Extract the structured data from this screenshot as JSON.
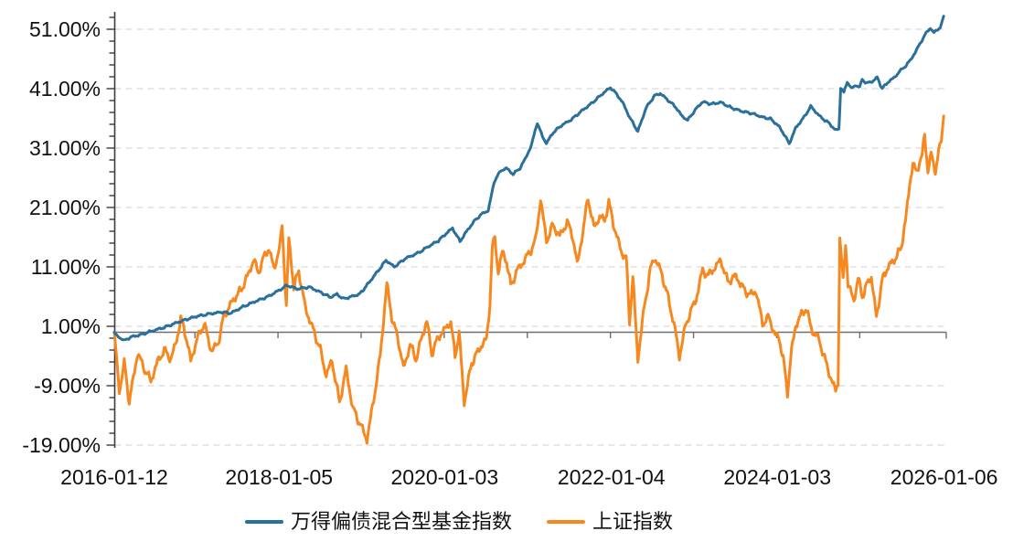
{
  "chart_data": {
    "type": "line",
    "title": "",
    "xlabel": "",
    "ylabel": "",
    "grid": {
      "color": "#d9d9d9",
      "dash": [
        7,
        5
      ],
      "vertical": false
    },
    "axis_color": "#3c3c3c",
    "baseline_color": "#6e6e6e",
    "label_color": "#111111",
    "y_axis": {
      "unit": "%",
      "min": -19,
      "max": 53,
      "minor_tick_step": 2,
      "zero_baseline": true,
      "ticks": [
        {
          "label": "51.00%",
          "value": 51
        },
        {
          "label": "41.00%",
          "value": 41
        },
        {
          "label": "31.00%",
          "value": 31
        },
        {
          "label": "21.00%",
          "value": 21
        },
        {
          "label": "11.00%",
          "value": 11
        },
        {
          "label": "1.00%",
          "value": 1
        },
        {
          "label": "-9.00%",
          "value": -9
        },
        {
          "label": "-19.00%",
          "value": -19
        }
      ]
    },
    "x_axis": {
      "units": "years since first date",
      "range": [
        0,
        9.985
      ],
      "ticks": [
        {
          "label": "2016-01-12",
          "t": 0
        },
        {
          "label": "2018-01-05",
          "t": 1.983
        },
        {
          "label": "2020-01-03",
          "t": 3.975
        },
        {
          "label": "2022-01-04",
          "t": 5.982
        },
        {
          "label": "2024-01-03",
          "t": 7.978
        },
        {
          "label": "2026-01-06",
          "t": 9.985
        }
      ],
      "year_tick_t": [
        0.97,
        1.97,
        2.97,
        3.97,
        4.97,
        5.97,
        6.97,
        7.97,
        8.97
      ]
    },
    "series": [
      {
        "id": "sse-index",
        "name": "上证指数",
        "color": "#f6881f",
        "stroke_width": 3,
        "noise_amp": 0.9,
        "points": [
          [
            0,
            0
          ],
          [
            0.03,
            -4.5
          ],
          [
            0.06,
            -10.3
          ],
          [
            0.12,
            -5.0
          ],
          [
            0.18,
            -11.8
          ],
          [
            0.28,
            -3.5
          ],
          [
            0.35,
            -5.8
          ],
          [
            0.44,
            -8.2
          ],
          [
            0.52,
            -5.0
          ],
          [
            0.6,
            -3.0
          ],
          [
            0.68,
            -4.5
          ],
          [
            0.75,
            -1.5
          ],
          [
            0.8,
            2.4
          ],
          [
            0.86,
            -0.5
          ],
          [
            0.92,
            -4.8
          ],
          [
            1.0,
            -1.0
          ],
          [
            1.08,
            1.5
          ],
          [
            1.17,
            -3.2
          ],
          [
            1.25,
            -1.8
          ],
          [
            1.32,
            2.8
          ],
          [
            1.42,
            5.2
          ],
          [
            1.52,
            7.0
          ],
          [
            1.6,
            9.3
          ],
          [
            1.68,
            12.3
          ],
          [
            1.73,
            10.0
          ],
          [
            1.8,
            12.6
          ],
          [
            1.86,
            14.1
          ],
          [
            1.92,
            10.8
          ],
          [
            1.99,
            14.0
          ],
          [
            2.02,
            18.2
          ],
          [
            2.07,
            4.2
          ],
          [
            2.1,
            15.8
          ],
          [
            2.16,
            7.5
          ],
          [
            2.22,
            10.4
          ],
          [
            2.3,
            4.0
          ],
          [
            2.38,
            1.0
          ],
          [
            2.48,
            -3.0
          ],
          [
            2.55,
            -7.2
          ],
          [
            2.62,
            -4.8
          ],
          [
            2.71,
            -11.8
          ],
          [
            2.79,
            -6.2
          ],
          [
            2.87,
            -12.8
          ],
          [
            2.96,
            -15.5
          ],
          [
            3.04,
            -18.1
          ],
          [
            3.12,
            -11.5
          ],
          [
            3.2,
            -4.0
          ],
          [
            3.28,
            8.2
          ],
          [
            3.34,
            2.5
          ],
          [
            3.42,
            -1.5
          ],
          [
            3.48,
            -6.1
          ],
          [
            3.56,
            -2.1
          ],
          [
            3.63,
            -4.5
          ],
          [
            3.7,
            -1.0
          ],
          [
            3.76,
            2.0
          ],
          [
            3.82,
            -3.6
          ],
          [
            3.9,
            -0.8
          ],
          [
            3.98,
            0.5
          ],
          [
            4.05,
            1.8
          ],
          [
            4.1,
            -4.1
          ],
          [
            4.15,
            0.0
          ],
          [
            4.21,
            -11.8
          ],
          [
            4.3,
            -5.2
          ],
          [
            4.4,
            -2.6
          ],
          [
            4.48,
            -1.2
          ],
          [
            4.52,
            5.0
          ],
          [
            4.55,
            14.5
          ],
          [
            4.58,
            15.6
          ],
          [
            4.62,
            10.2
          ],
          [
            4.67,
            13.5
          ],
          [
            4.72,
            12.0
          ],
          [
            4.77,
            7.8
          ],
          [
            4.85,
            10.5
          ],
          [
            4.93,
            12.0
          ],
          [
            5.0,
            13.5
          ],
          [
            5.07,
            15.5
          ],
          [
            5.13,
            22.4
          ],
          [
            5.2,
            15.4
          ],
          [
            5.28,
            18.0
          ],
          [
            5.36,
            16.2
          ],
          [
            5.45,
            18.5
          ],
          [
            5.52,
            16.0
          ],
          [
            5.57,
            11.3
          ],
          [
            5.64,
            17.0
          ],
          [
            5.7,
            22.8
          ],
          [
            5.77,
            17.5
          ],
          [
            5.84,
            19.5
          ],
          [
            5.9,
            18.8
          ],
          [
            5.95,
            21.8
          ],
          [
            6.02,
            17.5
          ],
          [
            6.1,
            13.5
          ],
          [
            6.16,
            12.5
          ],
          [
            6.2,
            1.8
          ],
          [
            6.24,
            9.3
          ],
          [
            6.3,
            -4.5
          ],
          [
            6.38,
            4.5
          ],
          [
            6.45,
            10.5
          ],
          [
            6.5,
            12.6
          ],
          [
            6.58,
            10.2
          ],
          [
            6.68,
            5.0
          ],
          [
            6.76,
            -0.5
          ],
          [
            6.8,
            -4.1
          ],
          [
            6.88,
            1.5
          ],
          [
            6.95,
            4.0
          ],
          [
            7.0,
            5.5
          ],
          [
            7.08,
            10.5
          ],
          [
            7.15,
            9.5
          ],
          [
            7.22,
            10.8
          ],
          [
            7.3,
            12.1
          ],
          [
            7.38,
            8.5
          ],
          [
            7.48,
            9.5
          ],
          [
            7.56,
            7.5
          ],
          [
            7.65,
            6.2
          ],
          [
            7.72,
            7.0
          ],
          [
            7.8,
            1.5
          ],
          [
            7.88,
            2.5
          ],
          [
            7.95,
            -0.5
          ],
          [
            8.0,
            -1.0
          ],
          [
            8.05,
            -4.5
          ],
          [
            8.1,
            -10.2
          ],
          [
            8.15,
            -3.0
          ],
          [
            8.2,
            1.2
          ],
          [
            8.27,
            3.0
          ],
          [
            8.32,
            4.1
          ],
          [
            8.4,
            0.2
          ],
          [
            8.48,
            -1.2
          ],
          [
            8.56,
            -5.0
          ],
          [
            8.63,
            -8.0
          ],
          [
            8.68,
            -9.9
          ],
          [
            8.71,
            -8.5
          ],
          [
            8.73,
            15.8
          ],
          [
            8.77,
            8.5
          ],
          [
            8.8,
            15.2
          ],
          [
            8.83,
            8.0
          ],
          [
            8.87,
            6.5
          ],
          [
            8.9,
            5.2
          ],
          [
            8.95,
            9.2
          ],
          [
            9.0,
            6.0
          ],
          [
            9.06,
            8.2
          ],
          [
            9.11,
            9.3
          ],
          [
            9.17,
            2.5
          ],
          [
            9.24,
            8.7
          ],
          [
            9.3,
            10.8
          ],
          [
            9.36,
            11.8
          ],
          [
            9.42,
            12.8
          ],
          [
            9.47,
            14.5
          ],
          [
            9.52,
            18.5
          ],
          [
            9.57,
            25.0
          ],
          [
            9.61,
            28.2
          ],
          [
            9.65,
            27.0
          ],
          [
            9.69,
            28.7
          ],
          [
            9.72,
            29.5
          ],
          [
            9.75,
            33.2
          ],
          [
            9.79,
            27.2
          ],
          [
            9.83,
            30.1
          ],
          [
            9.86,
            27.8
          ],
          [
            9.88,
            27.2
          ],
          [
            9.92,
            30.5
          ],
          [
            9.95,
            32.0
          ],
          [
            9.98,
            36.4
          ]
        ]
      },
      {
        "id": "fund-index",
        "name": "万得偏债混合型基金指数",
        "color": "#2b6f9b",
        "stroke_width": 3,
        "noise_amp": 0.22,
        "points": [
          [
            0,
            0
          ],
          [
            0.05,
            -0.8
          ],
          [
            0.12,
            -1.4
          ],
          [
            0.2,
            -0.8
          ],
          [
            0.3,
            -0.5
          ],
          [
            0.45,
            0.2
          ],
          [
            0.6,
            0.8
          ],
          [
            0.75,
            1.6
          ],
          [
            0.9,
            2.3
          ],
          [
            1.0,
            2.7
          ],
          [
            1.15,
            3.1
          ],
          [
            1.3,
            3.4
          ],
          [
            1.4,
            3.2
          ],
          [
            1.55,
            4.3
          ],
          [
            1.7,
            5.2
          ],
          [
            1.85,
            6.0
          ],
          [
            2.0,
            7.2
          ],
          [
            2.08,
            7.9
          ],
          [
            2.2,
            7.3
          ],
          [
            2.35,
            7.6
          ],
          [
            2.5,
            6.6
          ],
          [
            2.6,
            5.9
          ],
          [
            2.68,
            6.4
          ],
          [
            2.76,
            5.6
          ],
          [
            2.85,
            6.0
          ],
          [
            2.95,
            6.4
          ],
          [
            3.0,
            7.2
          ],
          [
            3.1,
            9.0
          ],
          [
            3.2,
            10.8
          ],
          [
            3.27,
            12.1
          ],
          [
            3.37,
            11.0
          ],
          [
            3.5,
            12.4
          ],
          [
            3.65,
            13.3
          ],
          [
            3.8,
            14.6
          ],
          [
            3.9,
            15.4
          ],
          [
            4.0,
            16.7
          ],
          [
            4.07,
            17.5
          ],
          [
            4.16,
            15.3
          ],
          [
            4.25,
            17.2
          ],
          [
            4.35,
            19.0
          ],
          [
            4.45,
            20.2
          ],
          [
            4.5,
            20.4
          ],
          [
            4.57,
            25.3
          ],
          [
            4.65,
            27.2
          ],
          [
            4.72,
            27.6
          ],
          [
            4.8,
            26.6
          ],
          [
            4.88,
            27.6
          ],
          [
            4.95,
            29.3
          ],
          [
            5.02,
            31.5
          ],
          [
            5.09,
            35.3
          ],
          [
            5.15,
            33.0
          ],
          [
            5.2,
            31.8
          ],
          [
            5.28,
            33.6
          ],
          [
            5.38,
            34.8
          ],
          [
            5.5,
            35.8
          ],
          [
            5.62,
            37.2
          ],
          [
            5.75,
            38.6
          ],
          [
            5.88,
            40.2
          ],
          [
            5.97,
            41.2
          ],
          [
            6.05,
            40.0
          ],
          [
            6.12,
            38.6
          ],
          [
            6.2,
            36.2
          ],
          [
            6.3,
            33.8
          ],
          [
            6.4,
            37.8
          ],
          [
            6.5,
            39.8
          ],
          [
            6.57,
            40.2
          ],
          [
            6.65,
            39.2
          ],
          [
            6.75,
            38.0
          ],
          [
            6.83,
            36.4
          ],
          [
            6.9,
            35.7
          ],
          [
            7.0,
            37.6
          ],
          [
            7.08,
            38.8
          ],
          [
            7.18,
            38.4
          ],
          [
            7.3,
            38.7
          ],
          [
            7.42,
            37.8
          ],
          [
            7.55,
            37.2
          ],
          [
            7.68,
            36.8
          ],
          [
            7.8,
            36.2
          ],
          [
            7.9,
            35.9
          ],
          [
            8.0,
            34.6
          ],
          [
            8.07,
            33.1
          ],
          [
            8.12,
            31.7
          ],
          [
            8.2,
            34.4
          ],
          [
            8.3,
            36.2
          ],
          [
            8.38,
            38.0
          ],
          [
            8.5,
            36.2
          ],
          [
            8.6,
            35.2
          ],
          [
            8.68,
            34.0
          ],
          [
            8.72,
            34.2
          ],
          [
            8.74,
            41.2
          ],
          [
            8.78,
            40.3
          ],
          [
            8.82,
            42.2
          ],
          [
            8.87,
            41.0
          ],
          [
            8.92,
            41.6
          ],
          [
            8.97,
            41.2
          ],
          [
            9.0,
            42.6
          ],
          [
            9.05,
            41.9
          ],
          [
            9.12,
            42.2
          ],
          [
            9.18,
            42.9
          ],
          [
            9.24,
            41.0
          ],
          [
            9.3,
            42.0
          ],
          [
            9.38,
            42.8
          ],
          [
            9.45,
            43.9
          ],
          [
            9.52,
            44.8
          ],
          [
            9.58,
            45.8
          ],
          [
            9.65,
            47.4
          ],
          [
            9.72,
            49.2
          ],
          [
            9.78,
            50.6
          ],
          [
            9.82,
            51.2
          ],
          [
            9.86,
            50.4
          ],
          [
            9.9,
            50.9
          ],
          [
            9.94,
            51.3
          ],
          [
            9.98,
            53.2
          ]
        ]
      }
    ]
  },
  "legend": {
    "items": [
      {
        "label": "万得偏债混合型基金指数",
        "color": "#2b6f9b"
      },
      {
        "label": "上证指数",
        "color": "#f6881f"
      }
    ]
  }
}
